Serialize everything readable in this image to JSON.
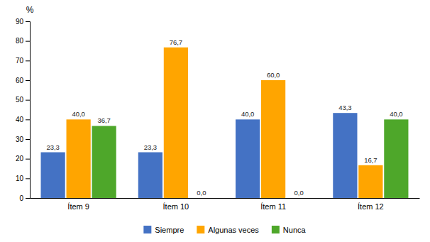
{
  "chart_data": {
    "type": "bar",
    "ylabel": "%",
    "categories": [
      "Ítem 9",
      "Ítem 10",
      "Ítem 11",
      "Ítem 12"
    ],
    "series": [
      {
        "name": "Siempre",
        "color": "#4472C4",
        "values": [
          23.3,
          23.3,
          40.0,
          43.3
        ],
        "value_labels": [
          "23,3",
          "23,3",
          "40,0",
          "43,3"
        ]
      },
      {
        "name": "Algunas veces",
        "color": "#FFA500",
        "values": [
          40.0,
          76.7,
          60.0,
          16.7
        ],
        "value_labels": [
          "40,0",
          "76,7",
          "60,0",
          "16,7"
        ]
      },
      {
        "name": "Nunca",
        "color": "#4EA72A",
        "values": [
          36.7,
          0.0,
          0.0,
          40.0
        ],
        "value_labels": [
          "36,7",
          "0,0",
          "0,0",
          "40,0"
        ]
      }
    ],
    "ylim": [
      0,
      90
    ],
    "yticks": [
      0,
      10,
      20,
      30,
      40,
      50,
      60,
      70,
      80,
      90
    ],
    "grid": false,
    "legend": "bottom",
    "data_labels": true
  }
}
